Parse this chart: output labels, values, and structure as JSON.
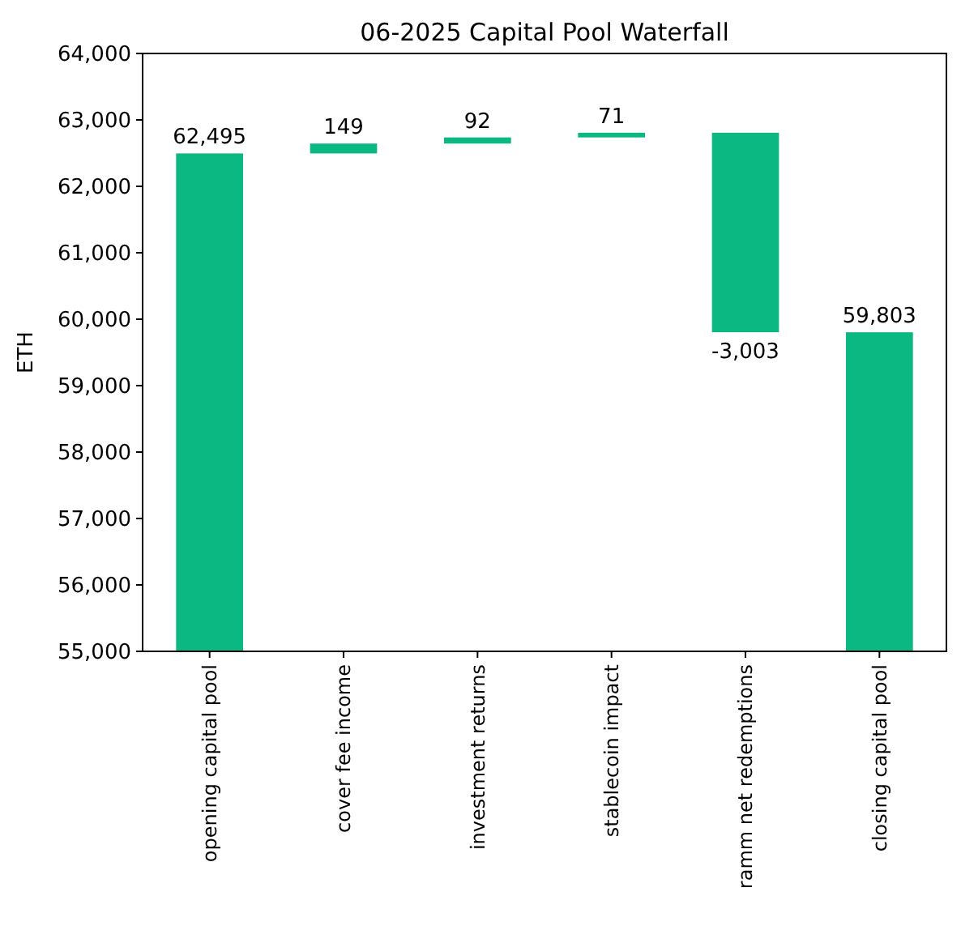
{
  "chart_data": {
    "type": "bar",
    "title": "06-2025 Capital Pool Waterfall",
    "ylabel": "ETH",
    "categories": [
      "opening capital pool",
      "cover fee income",
      "investment returns",
      "stablecoin impact",
      "ramm net redemptions",
      "closing capital pool"
    ],
    "values": [
      62495,
      149,
      92,
      71,
      -3003,
      59803
    ],
    "base": [
      null,
      62495,
      62644,
      62736,
      62807,
      null
    ],
    "value_labels": [
      "62,495",
      "149",
      "92",
      "71",
      "-3,003",
      "59,803"
    ],
    "color": "#0bb882",
    "ylim": [
      55000,
      64000
    ],
    "yticks": [
      {
        "value": 55000,
        "label": "55,000"
      },
      {
        "value": 56000,
        "label": "56,000"
      },
      {
        "value": 57000,
        "label": "57,000"
      },
      {
        "value": 58000,
        "label": "58,000"
      },
      {
        "value": 59000,
        "label": "59,000"
      },
      {
        "value": 60000,
        "label": "60,000"
      },
      {
        "value": 61000,
        "label": "61,000"
      },
      {
        "value": 62000,
        "label": "62,000"
      },
      {
        "value": 63000,
        "label": "63,000"
      },
      {
        "value": 64000,
        "label": "64,000"
      }
    ],
    "grid": false
  }
}
